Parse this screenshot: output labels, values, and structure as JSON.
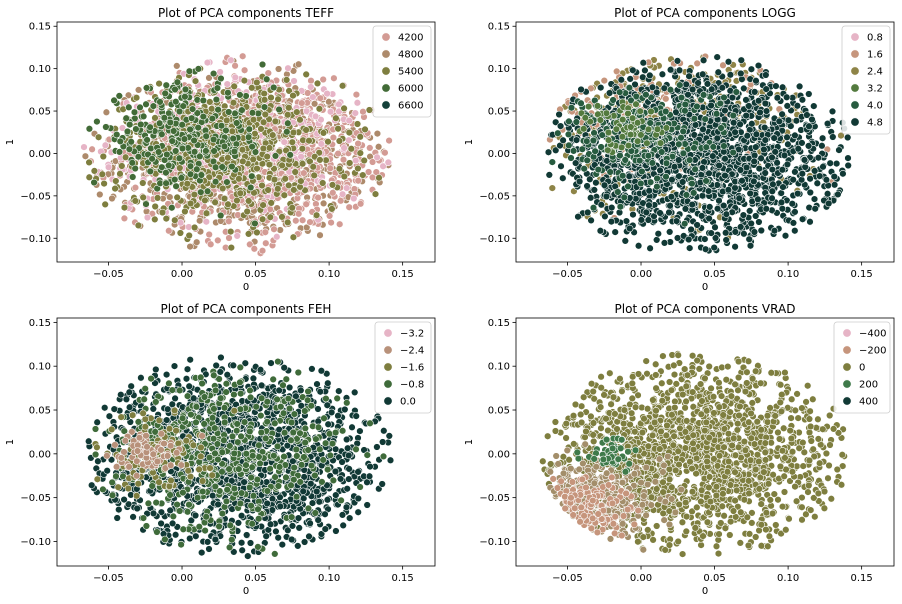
{
  "chart_data": [
    {
      "type": "scatter",
      "title": "Plot of PCA components TEFF",
      "xlabel": "0",
      "ylabel": "1",
      "xlim": [
        -0.085,
        0.172
      ],
      "ylim": [
        -0.128,
        0.155
      ],
      "xticks": [
        {
          "v": -0.05,
          "label": "−0.05"
        },
        {
          "v": 0.0,
          "label": "0.00"
        },
        {
          "v": 0.05,
          "label": "0.05"
        },
        {
          "v": 0.1,
          "label": "0.10"
        },
        {
          "v": 0.15,
          "label": "0.15"
        }
      ],
      "yticks": [
        {
          "v": -0.1,
          "label": "−0.10"
        },
        {
          "v": -0.05,
          "label": "−0.05"
        },
        {
          "v": 0.0,
          "label": "0.00"
        },
        {
          "v": 0.05,
          "label": "0.05"
        },
        {
          "v": 0.1,
          "label": "0.10"
        },
        {
          "v": 0.15,
          "label": "0.15"
        }
      ],
      "grid": false,
      "legend_position": "top-right",
      "legend": [
        {
          "label": "4200",
          "color": "#d39b94"
        },
        {
          "label": "4800",
          "color": "#ad8a6b"
        },
        {
          "label": "5400",
          "color": "#7e7e3f"
        },
        {
          "label": "6000",
          "color": "#426b37"
        },
        {
          "label": "6600",
          "color": "#14413a"
        }
      ],
      "cloud": {
        "center": [
          0.038,
          -0.002
        ],
        "rx": 0.105,
        "ry": 0.117,
        "layers": [
          {
            "color": "#ad8a6b",
            "n": 900,
            "cx": 0.04,
            "cy": -0.005,
            "sx": 0.042,
            "sy": 0.045
          },
          {
            "color": "#d39b94",
            "n": 650,
            "cx": 0.06,
            "cy": 0.0,
            "sx": 0.05,
            "sy": 0.052
          },
          {
            "color": "#e6b4c6",
            "n": 260,
            "cx": 0.03,
            "cy": 0.02,
            "sx": 0.05,
            "sy": 0.05
          },
          {
            "color": "#7e7e3f",
            "n": 700,
            "cx": 0.03,
            "cy": 0.005,
            "sx": 0.04,
            "sy": 0.04
          },
          {
            "color": "#426b37",
            "n": 300,
            "cx": 0.0,
            "cy": 0.02,
            "sx": 0.03,
            "sy": 0.03
          }
        ]
      }
    },
    {
      "type": "scatter",
      "title": "Plot of PCA components LOGG",
      "xlabel": "0",
      "ylabel": "1",
      "xlim": [
        -0.085,
        0.172
      ],
      "ylim": [
        -0.128,
        0.155
      ],
      "xticks": [
        {
          "v": -0.05,
          "label": "−0.05"
        },
        {
          "v": 0.0,
          "label": "0.00"
        },
        {
          "v": 0.05,
          "label": "0.05"
        },
        {
          "v": 0.1,
          "label": "0.10"
        },
        {
          "v": 0.15,
          "label": "0.15"
        }
      ],
      "yticks": [
        {
          "v": -0.1,
          "label": "−0.10"
        },
        {
          "v": -0.05,
          "label": "−0.05"
        },
        {
          "v": 0.0,
          "label": "0.00"
        },
        {
          "v": 0.05,
          "label": "0.05"
        },
        {
          "v": 0.1,
          "label": "0.10"
        },
        {
          "v": 0.15,
          "label": "0.15"
        }
      ],
      "grid": false,
      "legend_position": "top-right",
      "legend": [
        {
          "label": "0.8",
          "color": "#e6b4c6"
        },
        {
          "label": "1.6",
          "color": "#c6957c"
        },
        {
          "label": "2.4",
          "color": "#8e8447"
        },
        {
          "label": "3.2",
          "color": "#537a3e"
        },
        {
          "label": "4.0",
          "color": "#275b3f"
        },
        {
          "label": "4.8",
          "color": "#113935"
        }
      ],
      "cloud": {
        "center": [
          0.038,
          -0.002
        ],
        "rx": 0.105,
        "ry": 0.117,
        "layers": [
          {
            "color": "#8e8447",
            "n": 300,
            "cx": 0.02,
            "cy": 0.04,
            "sx": 0.05,
            "sy": 0.05
          },
          {
            "color": "#c6957c",
            "n": 150,
            "cx": 0.0,
            "cy": 0.05,
            "sx": 0.05,
            "sy": 0.04
          },
          {
            "color": "#113935",
            "n": 1700,
            "cx": 0.04,
            "cy": -0.005,
            "sx": 0.05,
            "sy": 0.055
          },
          {
            "color": "#275b3f",
            "n": 250,
            "cx": 0.0,
            "cy": 0.02,
            "sx": 0.03,
            "sy": 0.03
          },
          {
            "color": "#537a3e",
            "n": 60,
            "cx": -0.01,
            "cy": 0.03,
            "sx": 0.015,
            "sy": 0.015
          }
        ]
      }
    },
    {
      "type": "scatter",
      "title": "Plot of PCA components FEH",
      "xlabel": "0",
      "ylabel": "1",
      "xlim": [
        -0.085,
        0.172
      ],
      "ylim": [
        -0.128,
        0.155
      ],
      "xticks": [
        {
          "v": -0.05,
          "label": "−0.05"
        },
        {
          "v": 0.0,
          "label": "0.00"
        },
        {
          "v": 0.05,
          "label": "0.05"
        },
        {
          "v": 0.1,
          "label": "0.10"
        },
        {
          "v": 0.15,
          "label": "0.15"
        }
      ],
      "yticks": [
        {
          "v": -0.1,
          "label": "−0.10"
        },
        {
          "v": -0.05,
          "label": "−0.05"
        },
        {
          "v": 0.0,
          "label": "0.00"
        },
        {
          "v": 0.05,
          "label": "0.05"
        },
        {
          "v": 0.1,
          "label": "0.10"
        },
        {
          "v": 0.15,
          "label": "0.15"
        }
      ],
      "grid": false,
      "legend_position": "top-right",
      "legend": [
        {
          "label": "−3.2",
          "color": "#e6b4c6"
        },
        {
          "label": "−2.4",
          "color": "#b8917a"
        },
        {
          "label": "−1.6",
          "color": "#7e7e3f"
        },
        {
          "label": "−0.8",
          "color": "#3f6b3a"
        },
        {
          "label": "0.0",
          "color": "#113935"
        }
      ],
      "cloud": {
        "center": [
          0.038,
          -0.002
        ],
        "rx": 0.105,
        "ry": 0.117,
        "layers": [
          {
            "color": "#113935",
            "n": 1500,
            "cx": 0.04,
            "cy": -0.005,
            "sx": 0.05,
            "sy": 0.055
          },
          {
            "color": "#3f6b3a",
            "n": 500,
            "cx": 0.03,
            "cy": 0.0,
            "sx": 0.04,
            "sy": 0.045
          },
          {
            "color": "#7e7e3f",
            "n": 120,
            "cx": -0.02,
            "cy": 0.0,
            "sx": 0.02,
            "sy": 0.02
          },
          {
            "color": "#b8917a",
            "n": 70,
            "cx": -0.025,
            "cy": 0.0,
            "sx": 0.012,
            "sy": 0.012
          }
        ]
      }
    },
    {
      "type": "scatter",
      "title": "Plot of PCA components VRAD",
      "xlabel": "0",
      "ylabel": "1",
      "xlim": [
        -0.085,
        0.172
      ],
      "ylim": [
        -0.128,
        0.155
      ],
      "xticks": [
        {
          "v": -0.05,
          "label": "−0.05"
        },
        {
          "v": 0.0,
          "label": "0.00"
        },
        {
          "v": 0.05,
          "label": "0.05"
        },
        {
          "v": 0.1,
          "label": "0.10"
        },
        {
          "v": 0.15,
          "label": "0.15"
        }
      ],
      "yticks": [
        {
          "v": -0.1,
          "label": "−0.10"
        },
        {
          "v": -0.05,
          "label": "−0.05"
        },
        {
          "v": 0.0,
          "label": "0.00"
        },
        {
          "v": 0.05,
          "label": "0.05"
        },
        {
          "v": 0.1,
          "label": "0.10"
        },
        {
          "v": 0.15,
          "label": "0.15"
        }
      ],
      "grid": false,
      "legend_position": "top-right",
      "legend": [
        {
          "label": "−400",
          "color": "#e6b4c6"
        },
        {
          "label": "−200",
          "color": "#c6957c"
        },
        {
          "label": "0",
          "color": "#7e7e3f"
        },
        {
          "label": "200",
          "color": "#3f7a4a"
        },
        {
          "label": "400",
          "color": "#113935"
        }
      ],
      "cloud": {
        "center": [
          0.038,
          -0.002
        ],
        "rx": 0.105,
        "ry": 0.117,
        "layers": [
          {
            "color": "#7e7e3f",
            "n": 1700,
            "cx": 0.04,
            "cy": 0.0,
            "sx": 0.05,
            "sy": 0.055
          },
          {
            "color": "#a38e6a",
            "n": 350,
            "cx": -0.035,
            "cy": -0.055,
            "sx": 0.022,
            "sy": 0.022
          },
          {
            "color": "#c6957c",
            "n": 120,
            "cx": -0.04,
            "cy": -0.06,
            "sx": 0.015,
            "sy": 0.015
          },
          {
            "color": "#3f7a4a",
            "n": 50,
            "cx": -0.02,
            "cy": 0.0,
            "sx": 0.01,
            "sy": 0.01
          }
        ]
      }
    }
  ]
}
